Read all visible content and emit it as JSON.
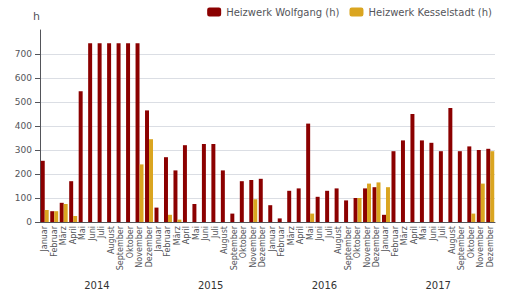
{
  "chart_data": {
    "type": "bar",
    "categories": [
      "Januar",
      "Februar",
      "März",
      "April",
      "Mai",
      "Juni",
      "Juli",
      "August",
      "September",
      "Oktober",
      "November",
      "Dezember",
      "Januar",
      "Februar",
      "März",
      "April",
      "Mai",
      "Juni",
      "Juli",
      "August",
      "September",
      "Oktober",
      "November",
      "Dezember",
      "Januar",
      "Februar",
      "März",
      "April",
      "Mai",
      "Juni",
      "Juli",
      "August",
      "September",
      "Oktober",
      "November",
      "Dezember",
      "Januar",
      "Februar",
      "März",
      "April",
      "Mai",
      "Juni",
      "Juli",
      "August",
      "September",
      "Oktober",
      "November",
      "Dezember"
    ],
    "series": [
      {
        "name": "Heizwerk Wolfgang (h)",
        "color": "#8B0000",
        "values": [
          255,
          45,
          80,
          170,
          545,
          745,
          745,
          745,
          745,
          745,
          745,
          465,
          60,
          270,
          215,
          320,
          75,
          325,
          325,
          215,
          35,
          170,
          175,
          180,
          70,
          15,
          130,
          140,
          410,
          105,
          130,
          140,
          90,
          100,
          140,
          145,
          30,
          295,
          340,
          450,
          340,
          330,
          295,
          475,
          295,
          315,
          300,
          305
        ]
      },
      {
        "name": "Heizwerk Kesselstadt (h)",
        "color": "#DAA520",
        "values": [
          50,
          45,
          75,
          25,
          0,
          0,
          0,
          0,
          0,
          0,
          240,
          345,
          0,
          30,
          10,
          0,
          0,
          0,
          0,
          0,
          0,
          0,
          95,
          0,
          0,
          0,
          0,
          0,
          35,
          0,
          0,
          0,
          0,
          100,
          160,
          165,
          145,
          0,
          0,
          0,
          0,
          0,
          0,
          0,
          0,
          35,
          160,
          295
        ]
      }
    ],
    "ylabel": "h",
    "ylim": [
      0,
      800
    ],
    "yticks": [
      0,
      100,
      200,
      300,
      400,
      500,
      600,
      700
    ],
    "grid": true,
    "legend": "upper right",
    "annotations": [
      "2014",
      "2015",
      "2016",
      "2017"
    ]
  }
}
